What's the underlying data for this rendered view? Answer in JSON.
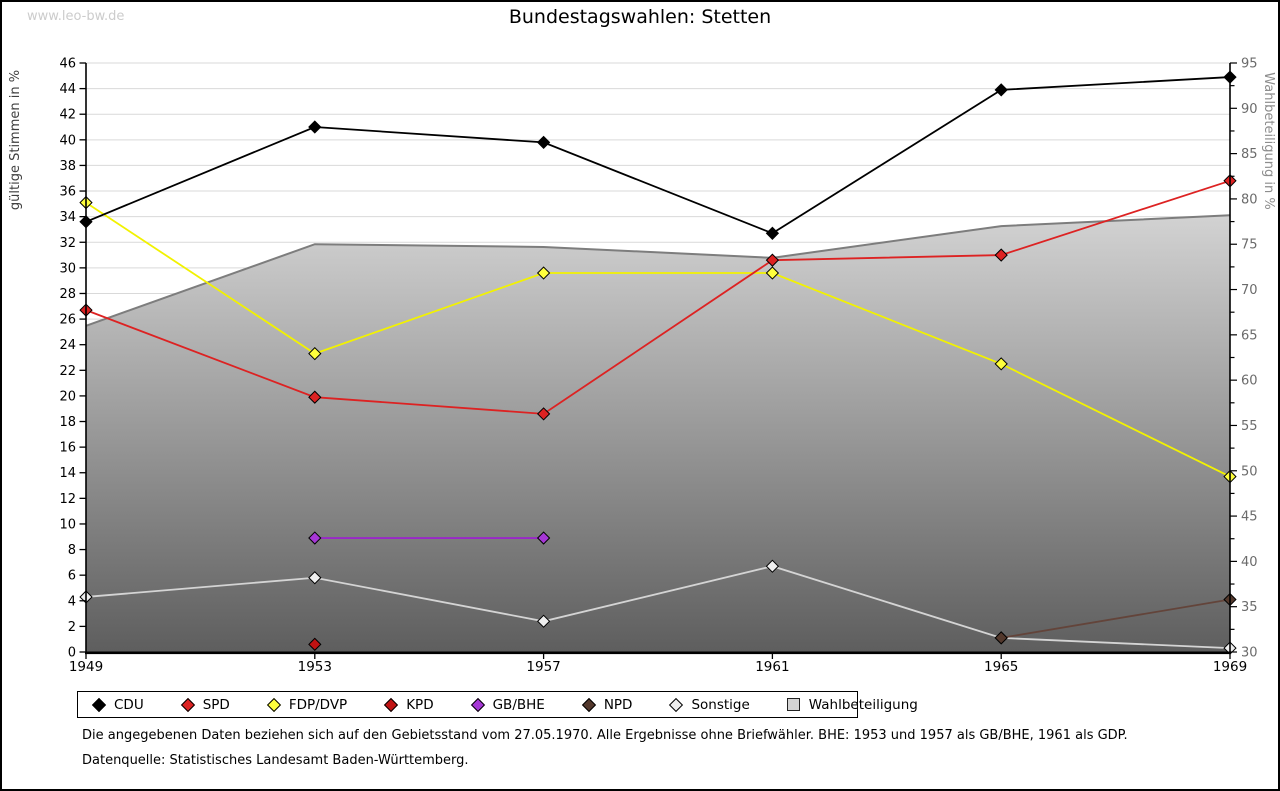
{
  "page": {
    "watermark": "www.leo-bw.de",
    "title": "Bundestagswahlen: Stetten",
    "footnote1": "Die angegebenen Daten beziehen sich auf den Gebietsstand vom 27.05.1970. Alle Ergebnisse ohne Briefwähler. BHE: 1953 und 1957 als GB/BHE, 1961 als GDP.",
    "footnote2": "Datenquelle: Statistisches Landesamt Baden-Württemberg."
  },
  "chart_data": {
    "type": "line",
    "title": "Bundestagswahlen: Stetten",
    "categories": [
      1949,
      1953,
      1957,
      1961,
      1965,
      1969
    ],
    "left_axis": {
      "label": "gültige Stimmen in %",
      "min": 0,
      "max": 46,
      "step": 2
    },
    "right_axis": {
      "label": "Wahlbeteiligung in %",
      "min": 30,
      "max": 95,
      "step": 5,
      "minor_step": 2.5
    },
    "grid": "horizontal",
    "legend_position": "bottom",
    "series": [
      {
        "name": "CDU",
        "type": "line",
        "axis": "left",
        "color": "#000000",
        "marker_fill": "#000000",
        "values": [
          33.6,
          41.0,
          39.8,
          32.7,
          43.9,
          44.9
        ]
      },
      {
        "name": "SPD",
        "type": "line",
        "axis": "left",
        "color": "#dd2222",
        "marker_fill": "#dd2222",
        "values": [
          26.7,
          19.9,
          18.6,
          30.6,
          31.0,
          36.8
        ]
      },
      {
        "name": "FDP/DVP",
        "type": "line",
        "axis": "left",
        "color": "#f2f200",
        "marker_fill": "#ffff3c",
        "values": [
          35.1,
          23.3,
          29.6,
          29.6,
          22.5,
          13.7
        ]
      },
      {
        "name": "KPD",
        "type": "line",
        "axis": "left",
        "color": "#b31111",
        "marker_fill": "#c01212",
        "values": [
          null,
          0.6,
          null,
          null,
          null,
          null
        ]
      },
      {
        "name": "GB/BHE",
        "type": "line",
        "axis": "left",
        "color": "#9928c8",
        "marker_fill": "#a637d6",
        "values": [
          null,
          8.9,
          8.9,
          null,
          null,
          null
        ]
      },
      {
        "name": "NPD",
        "type": "line",
        "axis": "left",
        "color": "#63443a",
        "marker_fill": "#53382c",
        "values": [
          null,
          null,
          null,
          null,
          1.1,
          4.1
        ]
      },
      {
        "name": "Sonstige",
        "type": "line",
        "axis": "left",
        "color": "#d4d4d4",
        "marker_fill": "#efefef",
        "values": [
          4.3,
          5.8,
          2.4,
          6.7,
          1.1,
          0.3
        ]
      },
      {
        "name": "Wahlbeteiligung",
        "type": "area",
        "axis": "right",
        "color": "#7d7d7d",
        "marker_fill": "#d4d4d4",
        "values": [
          66.0,
          75.0,
          74.7,
          73.5,
          77.0,
          78.2
        ]
      }
    ]
  }
}
